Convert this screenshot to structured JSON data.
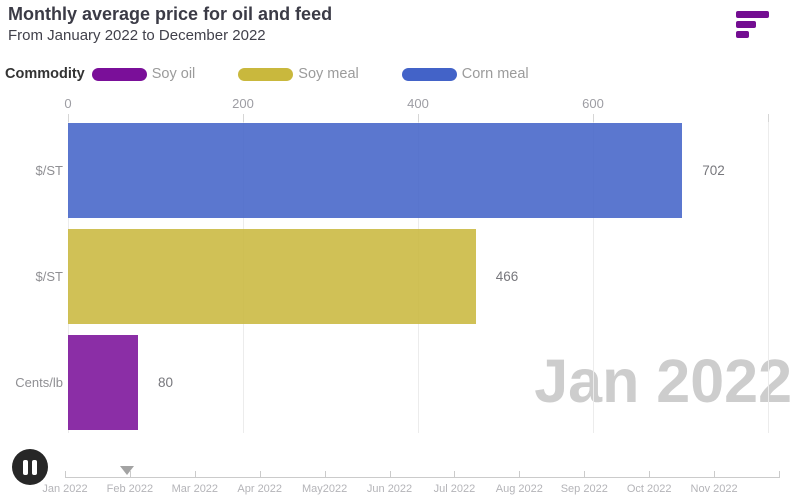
{
  "header": {
    "title": "Monthly average price for oil and feed",
    "subtitle": "From January 2022 to December 2022"
  },
  "logo": {
    "color": "#730d91"
  },
  "legend": {
    "title": "Commodity",
    "items": [
      {
        "label": "Soy oil",
        "color": "#7a0f99"
      },
      {
        "label": "Soy meal",
        "color": "#c9b83d"
      },
      {
        "label": "Corn meal",
        "color": "#4363c8"
      }
    ]
  },
  "chart_data": {
    "type": "bar",
    "orientation": "horizontal",
    "title": "Monthly average price for oil and feed",
    "subtitle": "From January 2022 to December 2022",
    "current_frame": "Jan 2022",
    "categories": [
      "$/ST",
      "$/ST",
      "Cents/lb"
    ],
    "series": [
      {
        "name": "Corn meal",
        "axis_label": "$/ST",
        "value": 702,
        "color": "#4363c8"
      },
      {
        "name": "Soy meal",
        "axis_label": "$/ST",
        "value": 466,
        "color": "#c9b83d"
      },
      {
        "name": "Soy oil",
        "axis_label": "Cents/lb",
        "value": 80,
        "color": "#7a0f99"
      }
    ],
    "value_axis": {
      "position": "top",
      "min": 0,
      "max": 800,
      "tick_labels": [
        0,
        200,
        400,
        600
      ],
      "grid_values": [
        0,
        200,
        400,
        600,
        800
      ],
      "grid": true
    },
    "legend_position": "top"
  },
  "watermark": "Jan 2022",
  "timeline": {
    "play_pause": "pause",
    "labels": [
      "Jan 2022",
      "Feb 2022",
      "Mar 2022",
      "Apr 2022",
      "May2022",
      "Jun 2022",
      "Jul 2022",
      "Aug 2022",
      "Sep 2022",
      "Oct 2022",
      "Nov 2022"
    ],
    "tick_count": 12,
    "slider_frac": 0.087
  }
}
